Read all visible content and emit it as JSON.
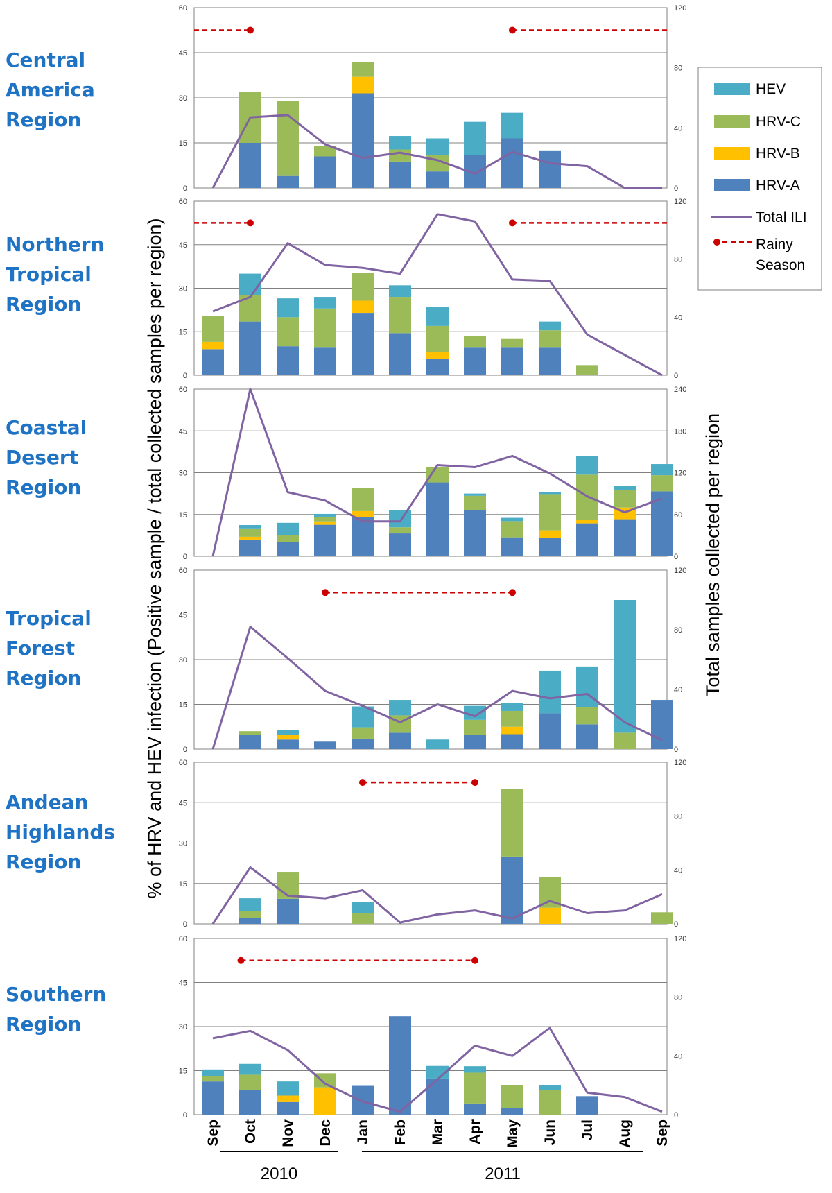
{
  "figure": {
    "y_left_title": "% of HRV and HEV infection (Positive sample / total collected samples per region)",
    "y_right_title": "Total samples collected per region",
    "years": [
      {
        "label": "2010",
        "from": "Sep",
        "to": "Dec"
      },
      {
        "label": "2011",
        "from": "Jan",
        "to": "Sep"
      }
    ]
  },
  "colors": {
    "HRV-A": "#4f81bd",
    "HRV-B": "#ffc000",
    "HRV-C": "#9bbb59",
    "HEV": "#4bacc6",
    "Total ILI": "#8064a2",
    "Rainy Season": "#cc0000"
  },
  "legend": [
    {
      "label": "HEV",
      "kind": "swatch",
      "color_key": "HEV"
    },
    {
      "label": "HRV-C",
      "kind": "swatch",
      "color_key": "HRV-C"
    },
    {
      "label": "HRV-B",
      "kind": "swatch",
      "color_key": "HRV-B"
    },
    {
      "label": "HRV-A",
      "kind": "swatch",
      "color_key": "HRV-A"
    },
    {
      "label": "Total ILI",
      "kind": "line",
      "color_key": "Total ILI"
    },
    {
      "label": "Rainy",
      "label2": "Season",
      "kind": "dashed",
      "color_key": "Rainy Season"
    }
  ],
  "chart_data": [
    {
      "type": "bar",
      "region": [
        "Central",
        "America",
        "Region"
      ],
      "categories": [
        "Sep",
        "Oct",
        "Nov",
        "Dec",
        "Jan",
        "Feb",
        "Mar",
        "Apr",
        "May",
        "Jun",
        "Jul",
        "Aug",
        "Sep"
      ],
      "ylim": [
        0,
        60
      ],
      "yticks": [
        "0",
        "15",
        "30",
        "45",
        "60"
      ],
      "y2lim": [
        0,
        120
      ],
      "y2ticks": [
        "0",
        "40",
        "80",
        "120"
      ],
      "series": [
        {
          "name": "HRV-A",
          "values": [
            0,
            15,
            4,
            10.5,
            31.5,
            8.8,
            5.5,
            11,
            16.5,
            12.5,
            0,
            0,
            0
          ]
        },
        {
          "name": "HRV-B",
          "values": [
            0,
            0,
            0,
            0,
            5.5,
            0,
            0,
            0,
            0,
            0,
            0,
            0,
            0
          ]
        },
        {
          "name": "HRV-C",
          "values": [
            0,
            17,
            25,
            3.5,
            5,
            4,
            5.5,
            0,
            0,
            0,
            0,
            0,
            0
          ]
        },
        {
          "name": "HEV",
          "values": [
            0,
            0,
            0,
            0,
            0,
            4.5,
            5.5,
            11,
            8.5,
            0,
            0,
            0,
            0
          ]
        }
      ],
      "total_ili": [
        0,
        47,
        48.5,
        29,
        20,
        23.5,
        18.5,
        9.5,
        24,
        16.5,
        14.5,
        0,
        0
      ],
      "rainy_season": [
        [
          -0.5,
          1
        ],
        [
          8,
          12.5
        ]
      ]
    },
    {
      "type": "bar",
      "region": [
        "Northern",
        "Tropical",
        "Region"
      ],
      "categories": [
        "Sep",
        "Oct",
        "Nov",
        "Dec",
        "Jan",
        "Feb",
        "Mar",
        "Apr",
        "May",
        "Jun",
        "Jul",
        "Aug",
        "Sep"
      ],
      "ylim": [
        0,
        60
      ],
      "yticks": [
        "0",
        "15",
        "30",
        "45",
        "60"
      ],
      "y2lim": [
        0,
        120
      ],
      "y2ticks": [
        "0",
        "40",
        "80",
        "120"
      ],
      "series": [
        {
          "name": "HRV-A",
          "values": [
            9,
            18.5,
            10,
            9.5,
            21.5,
            14.5,
            5.5,
            9.5,
            9.5,
            9.5,
            0,
            0,
            0
          ]
        },
        {
          "name": "HRV-B",
          "values": [
            2.5,
            0,
            0,
            0,
            4.2,
            0,
            2.5,
            0,
            0,
            0,
            0,
            0,
            0
          ]
        },
        {
          "name": "HRV-C",
          "values": [
            9,
            9,
            10,
            13.5,
            9.5,
            12.5,
            9,
            4,
            3,
            6,
            3.5,
            0,
            0
          ]
        },
        {
          "name": "HEV",
          "values": [
            0,
            7.5,
            6.5,
            4,
            0,
            4,
            6.5,
            0,
            0,
            3,
            0,
            0,
            0
          ]
        }
      ],
      "total_ili": [
        44,
        54,
        91,
        76,
        74,
        70,
        111,
        106,
        66,
        65,
        28,
        14,
        0
      ],
      "rainy_season": [
        [
          -0.5,
          1
        ],
        [
          8,
          12.5
        ]
      ]
    },
    {
      "type": "bar",
      "region": [
        "Coastal",
        "Desert",
        "Region"
      ],
      "categories": [
        "Sep",
        "Oct",
        "Nov",
        "Dec",
        "Jan",
        "Feb",
        "Mar",
        "Apr",
        "May",
        "Jun",
        "Jul",
        "Aug",
        "Sep"
      ],
      "ylim": [
        0,
        60
      ],
      "yticks": [
        "0",
        "15",
        "30",
        "45",
        "60"
      ],
      "y2lim": [
        0,
        240
      ],
      "y2ticks": [
        "0",
        "60",
        "120",
        "180",
        "240"
      ],
      "series": [
        {
          "name": "HRV-A",
          "values": [
            0,
            6,
            5.2,
            11.3,
            14,
            8.2,
            26.5,
            16.5,
            6.8,
            6.5,
            11.8,
            13.3,
            23.3
          ]
        },
        {
          "name": "HRV-B",
          "values": [
            0,
            1,
            0,
            1.2,
            2.2,
            0,
            0,
            0,
            0,
            2.8,
            1.3,
            4.2,
            0
          ]
        },
        {
          "name": "HRV-C",
          "values": [
            0,
            3,
            2.5,
            1.7,
            8.3,
            2.2,
            5.5,
            5.2,
            5.8,
            13,
            16.2,
            6.3,
            5.8
          ]
        },
        {
          "name": "HEV",
          "values": [
            0,
            1.2,
            4.3,
            1,
            0,
            6.2,
            0,
            0.8,
            1.2,
            0.7,
            6.8,
            1.5,
            4
          ]
        }
      ],
      "total_ili": [
        0,
        240,
        92,
        80,
        50,
        50,
        131,
        128,
        144,
        119,
        86,
        63,
        83
      ],
      "rainy_season": []
    },
    {
      "type": "bar",
      "region": [
        "Tropical",
        "Forest",
        "Region"
      ],
      "categories": [
        "Sep",
        "Oct",
        "Nov",
        "Dec",
        "Jan",
        "Feb",
        "Mar",
        "Apr",
        "May",
        "Jun",
        "Jul",
        "Aug",
        "Sep"
      ],
      "ylim": [
        0,
        60
      ],
      "yticks": [
        "0",
        "15",
        "30",
        "45",
        "60"
      ],
      "y2lim": [
        0,
        120
      ],
      "y2ticks": [
        "0",
        "40",
        "80",
        "120"
      ],
      "series": [
        {
          "name": "HRV-A",
          "values": [
            0,
            4.8,
            3.2,
            2.5,
            3.5,
            5.5,
            0,
            4.8,
            5,
            12,
            8.3,
            0,
            16.5
          ]
        },
        {
          "name": "HRV-B",
          "values": [
            0,
            0,
            1.6,
            0,
            0,
            0,
            0,
            0,
            2.5,
            0,
            0,
            0,
            0
          ]
        },
        {
          "name": "HRV-C",
          "values": [
            0,
            1.2,
            0,
            0,
            3.8,
            5.8,
            0,
            5,
            5.3,
            0,
            5.7,
            5.5,
            0
          ]
        },
        {
          "name": "HEV",
          "values": [
            0,
            0,
            1.7,
            0,
            7,
            5.2,
            3.2,
            4.7,
            2.7,
            14.3,
            13.7,
            44.5,
            0
          ]
        }
      ],
      "total_ili": [
        0,
        82,
        61,
        39,
        29,
        18,
        30,
        22,
        39,
        34,
        37,
        18,
        6
      ],
      "rainy_season": [
        [
          3,
          8
        ]
      ]
    },
    {
      "type": "bar",
      "region": [
        "Andean",
        "Highlands",
        "Region"
      ],
      "categories": [
        "Sep",
        "Oct",
        "Nov",
        "Dec",
        "Jan",
        "Feb",
        "Mar",
        "Apr",
        "May",
        "Jun",
        "Jul",
        "Aug",
        "Sep"
      ],
      "ylim": [
        0,
        60
      ],
      "yticks": [
        "0",
        "15",
        "30",
        "45",
        "60"
      ],
      "y2lim": [
        0,
        120
      ],
      "y2ticks": [
        "0",
        "40",
        "80",
        "120"
      ],
      "series": [
        {
          "name": "HRV-A",
          "values": [
            0,
            2.2,
            9.3,
            0,
            0,
            0,
            0,
            0,
            25,
            0,
            0,
            0,
            0
          ]
        },
        {
          "name": "HRV-B",
          "values": [
            0,
            0,
            0,
            0,
            0,
            0,
            0,
            0,
            0,
            6,
            0,
            0,
            0
          ]
        },
        {
          "name": "HRV-C",
          "values": [
            0,
            2.5,
            10,
            0,
            4,
            0,
            0,
            0,
            25,
            11.5,
            0,
            0,
            4.3
          ]
        },
        {
          "name": "HEV",
          "values": [
            0,
            4.8,
            0,
            0,
            4,
            0,
            0,
            0,
            0,
            0,
            0,
            0,
            0
          ]
        }
      ],
      "total_ili": [
        0,
        42,
        21,
        19,
        25,
        1,
        7,
        10,
        4,
        17,
        8,
        10,
        22
      ],
      "rainy_season": [
        [
          4,
          7
        ]
      ]
    },
    {
      "type": "bar",
      "region": [
        "Southern",
        "Region"
      ],
      "categories": [
        "Sep",
        "Oct",
        "Nov",
        "Dec",
        "Jan",
        "Feb",
        "Mar",
        "Apr",
        "May",
        "Jun",
        "Jul",
        "Aug",
        "Sep"
      ],
      "ylim": [
        0,
        60
      ],
      "yticks": [
        "0",
        "15",
        "30",
        "45",
        "60"
      ],
      "y2lim": [
        0,
        120
      ],
      "y2ticks": [
        "0",
        "40",
        "80",
        "120"
      ],
      "series": [
        {
          "name": "HRV-A",
          "values": [
            11.3,
            8.3,
            4.3,
            0,
            9.8,
            33.5,
            12.3,
            3.8,
            2.2,
            0,
            6.3,
            0,
            0
          ]
        },
        {
          "name": "HRV-B",
          "values": [
            0,
            0,
            2.2,
            9.3,
            0,
            0,
            0,
            0,
            0,
            0,
            0,
            0,
            0
          ]
        },
        {
          "name": "HRV-C",
          "values": [
            1.8,
            5.3,
            0,
            4.8,
            0,
            0,
            0,
            10.5,
            7.8,
            8.3,
            0,
            0,
            0
          ]
        },
        {
          "name": "HEV",
          "values": [
            2.3,
            3.7,
            4.8,
            0,
            0,
            0,
            4.3,
            2.2,
            0,
            1.7,
            0,
            0,
            0
          ]
        }
      ],
      "total_ili": [
        52,
        57,
        44,
        21,
        9,
        2,
        24,
        47,
        40,
        59,
        15,
        12,
        2
      ],
      "rainy_season": [
        [
          0.75,
          7
        ]
      ]
    }
  ]
}
